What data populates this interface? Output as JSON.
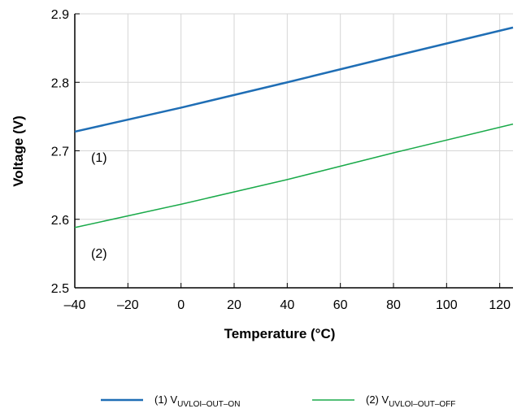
{
  "chart_data": {
    "type": "line",
    "title": "",
    "xlabel": "Temperature (°C)",
    "ylabel": "Voltage (V)",
    "xlim": [
      -40,
      125
    ],
    "ylim": [
      2.5,
      2.9
    ],
    "x_ticks": [
      -40,
      -20,
      0,
      20,
      40,
      60,
      80,
      100,
      120
    ],
    "x_tick_labels": [
      "–40",
      "–20",
      "0",
      "20",
      "40",
      "60",
      "80",
      "100",
      "120"
    ],
    "y_ticks": [
      2.5,
      2.6,
      2.7,
      2.8,
      2.9
    ],
    "y_tick_labels": [
      "2.5",
      "2.6",
      "2.7",
      "2.8",
      "2.9"
    ],
    "grid": true,
    "legend_position": "bottom",
    "series": [
      {
        "name": "(1) VUVLOI–OUT–ON",
        "legend_prefix": "(1) V",
        "legend_subscript": "UVLOI–OUT–ON",
        "annotation": "(1)",
        "color": "#1f6eb5",
        "x": [
          -40,
          0,
          40,
          80,
          125
        ],
        "y": [
          2.728,
          2.763,
          2.8,
          2.838,
          2.88
        ]
      },
      {
        "name": "(2) VUVLOI–OUT–OFF",
        "legend_prefix": "(2) V",
        "legend_subscript": "UVLOI–OUT–OFF",
        "annotation": "(2)",
        "color": "#1aaa4a",
        "x": [
          -40,
          0,
          40,
          80,
          125
        ],
        "y": [
          2.588,
          2.622,
          2.658,
          2.697,
          2.739
        ]
      }
    ]
  }
}
